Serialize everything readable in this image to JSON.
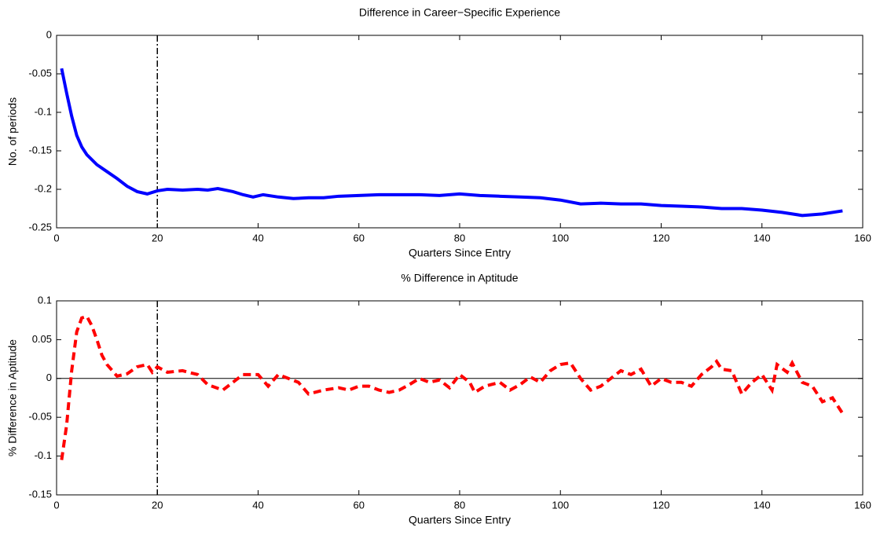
{
  "chart_data": [
    {
      "type": "line",
      "title": "Difference in Career−Specific Experience",
      "x_label": "Quarters Since Entry",
      "y_label": "No. of periods",
      "xlim": [
        0,
        160
      ],
      "xticks": [
        0,
        20,
        40,
        60,
        80,
        100,
        120,
        140,
        160
      ],
      "ylim": [
        -0.25,
        0
      ],
      "yticks": [
        -0.25,
        -0.2,
        -0.15,
        -0.1,
        -0.05,
        0
      ],
      "vline": 20,
      "series": [
        {
          "color": "#0000ff",
          "line_style": "solid",
          "x": [
            1,
            2,
            3,
            4,
            5,
            6,
            8,
            10,
            12,
            14,
            16,
            18,
            20,
            22,
            25,
            28,
            30,
            32,
            35,
            37,
            39,
            41,
            44,
            47,
            50,
            53,
            56,
            60,
            64,
            68,
            72,
            76,
            80,
            84,
            88,
            92,
            96,
            100,
            104,
            108,
            112,
            116,
            120,
            124,
            128,
            132,
            136,
            140,
            144,
            148,
            152,
            156
          ],
          "values": [
            -0.043,
            -0.075,
            -0.105,
            -0.13,
            -0.145,
            -0.155,
            -0.168,
            -0.177,
            -0.186,
            -0.196,
            -0.203,
            -0.206,
            -0.202,
            -0.2,
            -0.201,
            -0.2,
            -0.201,
            -0.199,
            -0.203,
            -0.207,
            -0.21,
            -0.207,
            -0.21,
            -0.212,
            -0.211,
            -0.211,
            -0.209,
            -0.208,
            -0.207,
            -0.207,
            -0.207,
            -0.208,
            -0.206,
            -0.208,
            -0.209,
            -0.21,
            -0.211,
            -0.214,
            -0.219,
            -0.218,
            -0.219,
            -0.219,
            -0.221,
            -0.222,
            -0.223,
            -0.225,
            -0.225,
            -0.227,
            -0.23,
            -0.234,
            -0.232,
            -0.228
          ]
        }
      ]
    },
    {
      "type": "line",
      "title": "% Difference in Aptitude",
      "x_label": "Quarters Since Entry",
      "y_label": "% Difference in Aptitude",
      "xlim": [
        0,
        160
      ],
      "xticks": [
        0,
        20,
        40,
        60,
        80,
        100,
        120,
        140,
        160
      ],
      "ylim": [
        -0.15,
        0.1
      ],
      "yticks": [
        -0.15,
        -0.1,
        -0.05,
        0,
        0.05,
        0.1
      ],
      "vline": 20,
      "hline": 0,
      "series": [
        {
          "color": "#ff0000",
          "line_style": "dashed",
          "x": [
            1,
            2,
            3,
            4,
            5,
            6,
            7,
            8,
            9,
            10,
            12,
            14,
            16,
            18,
            19,
            20,
            22,
            25,
            28,
            30,
            33,
            35,
            37,
            40,
            42,
            44,
            46,
            48,
            50,
            53,
            56,
            58,
            60,
            62,
            64,
            66,
            68,
            70,
            72,
            74,
            76,
            78,
            80,
            82,
            83,
            85,
            88,
            90,
            92,
            94,
            96,
            98,
            100,
            102,
            104,
            106,
            108,
            110,
            112,
            114,
            116,
            118,
            120,
            122,
            124,
            126,
            128,
            130,
            131,
            132,
            134,
            136,
            138,
            140,
            142,
            143,
            145,
            146,
            148,
            150,
            152,
            154,
            156
          ],
          "values": [
            -0.105,
            -0.06,
            0.01,
            0.06,
            0.078,
            0.08,
            0.068,
            0.05,
            0.03,
            0.018,
            0.003,
            0.006,
            0.015,
            0.018,
            0.008,
            0.015,
            0.008,
            0.01,
            0.005,
            -0.008,
            -0.015,
            -0.005,
            0.005,
            0.005,
            -0.01,
            0.005,
            0.0,
            -0.005,
            -0.02,
            -0.015,
            -0.012,
            -0.015,
            -0.01,
            -0.01,
            -0.015,
            -0.018,
            -0.015,
            -0.008,
            0.0,
            -0.005,
            -0.002,
            -0.012,
            0.005,
            -0.005,
            -0.018,
            -0.01,
            -0.005,
            -0.015,
            -0.008,
            0.002,
            -0.005,
            0.01,
            0.018,
            0.02,
            0.0,
            -0.015,
            -0.01,
            0.0,
            0.01,
            0.005,
            0.012,
            -0.01,
            0.0,
            -0.005,
            -0.005,
            -0.01,
            0.005,
            0.015,
            0.022,
            0.012,
            0.01,
            -0.02,
            -0.005,
            0.005,
            -0.015,
            0.018,
            0.008,
            0.02,
            -0.005,
            -0.01,
            -0.03,
            -0.025,
            -0.045
          ]
        }
      ]
    }
  ]
}
